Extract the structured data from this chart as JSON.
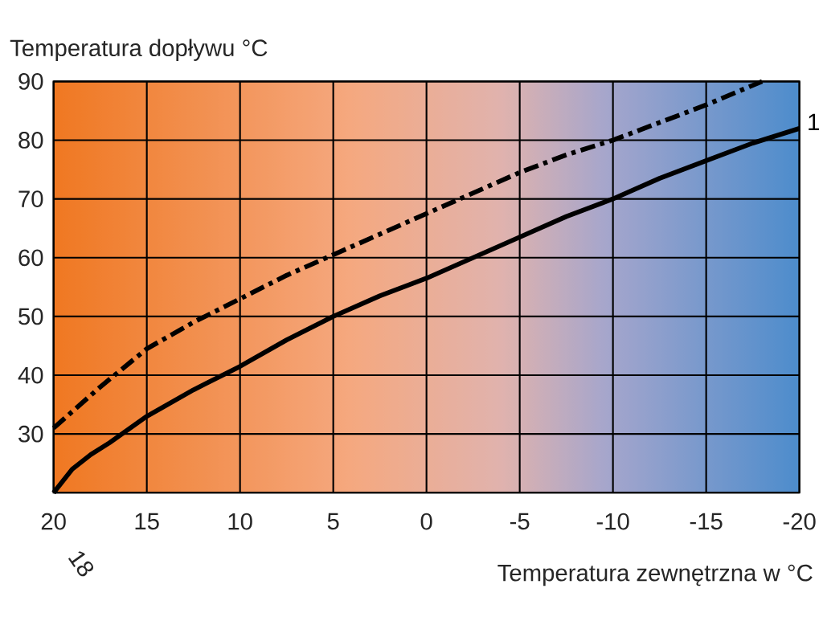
{
  "chart_data": {
    "type": "line",
    "xlabel": "Temperatura zewnętrzna w °C",
    "ylabel": "Temperatura dopływu  °C",
    "x": [
      20,
      19,
      18,
      17,
      15,
      12.5,
      10,
      7.5,
      5,
      2.5,
      0,
      -2.5,
      -5,
      -7.5,
      -10,
      -12.5,
      -15,
      -17.5,
      -20
    ],
    "series": [
      {
        "name": "1",
        "color": "#000000",
        "line_style": "solid",
        "values": [
          20,
          24,
          26.5,
          28.5,
          33,
          37.5,
          41.5,
          46,
          50,
          53.5,
          56.5,
          60,
          63.5,
          67,
          70,
          73.5,
          76.5,
          79.5,
          82
        ]
      },
      {
        "color": "#000000",
        "line_style": "dashdot",
        "x": [
          20,
          17.5,
          15,
          12.5,
          10,
          7.5,
          5,
          2.5,
          0,
          -2.5,
          -5,
          -7.5,
          -10,
          -12.5,
          -15,
          -18
        ],
        "values": [
          31,
          38,
          44.5,
          49,
          53,
          57,
          60.5,
          64,
          67.5,
          71,
          74.5,
          77.5,
          80,
          83,
          86,
          90
        ]
      }
    ],
    "xlim": [
      20,
      -20
    ],
    "ylim": [
      20,
      90
    ],
    "xticks": [
      20,
      15,
      10,
      5,
      0,
      -5,
      -10,
      -15,
      -20
    ],
    "yticks": [
      {
        "value": 20,
        "label": null
      },
      30,
      40,
      50,
      60,
      70,
      80,
      90
    ],
    "grid": true,
    "annotations": [
      "18"
    ]
  }
}
